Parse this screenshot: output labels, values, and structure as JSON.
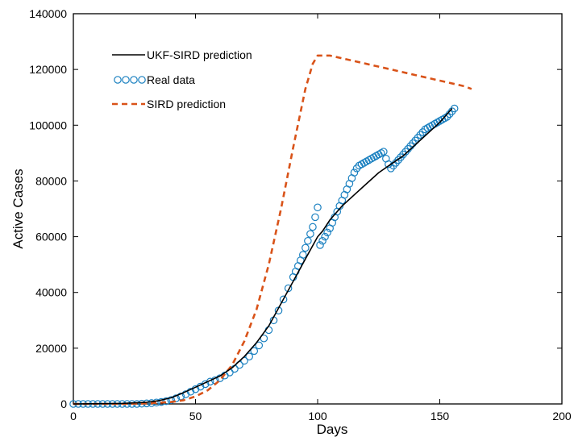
{
  "chart_data": {
    "type": "line",
    "title": "",
    "xlabel": "Days",
    "ylabel": "Active Cases",
    "xlim": [
      0,
      200
    ],
    "ylim": [
      0,
      140000
    ],
    "x_ticks": [
      0,
      50,
      100,
      150,
      200
    ],
    "y_ticks": [
      0,
      20000,
      40000,
      60000,
      80000,
      100000,
      120000,
      140000
    ],
    "grid": false,
    "legend_position": "top-left",
    "series": [
      {
        "name": "UKF-SIRD prediction",
        "style": "solid",
        "color": "#000000",
        "x": [
          0,
          10,
          20,
          30,
          35,
          40,
          45,
          50,
          55,
          60,
          65,
          70,
          75,
          80,
          85,
          90,
          95,
          100,
          102,
          105,
          110,
          115,
          120,
          125,
          130,
          135,
          140,
          145,
          150,
          155
        ],
        "y": [
          0,
          100,
          200,
          600,
          1200,
          2200,
          4000,
          6000,
          8000,
          10000,
          13000,
          17000,
          22000,
          28000,
          36000,
          44000,
          52000,
          60000,
          62000,
          66000,
          71000,
          75000,
          79000,
          83000,
          86000,
          89000,
          93000,
          97000,
          101000,
          106000
        ]
      },
      {
        "name": "Real data",
        "style": "circles",
        "color": "#1a80c0",
        "x": [
          0,
          2,
          4,
          6,
          8,
          10,
          12,
          14,
          16,
          18,
          20,
          22,
          24,
          26,
          28,
          30,
          32,
          34,
          36,
          38,
          40,
          42,
          44,
          46,
          48,
          50,
          52,
          54,
          56,
          58,
          60,
          62,
          64,
          66,
          68,
          70,
          72,
          74,
          76,
          78,
          80,
          82,
          84,
          86,
          88,
          90,
          91,
          92,
          93,
          94,
          95,
          96,
          97,
          98,
          99,
          100,
          101,
          102,
          103,
          104,
          105,
          106,
          107,
          108,
          109,
          110,
          111,
          112,
          113,
          114,
          115,
          116,
          117,
          118,
          119,
          120,
          121,
          122,
          123,
          124,
          125,
          126,
          127,
          128,
          129,
          130,
          131,
          132,
          133,
          134,
          135,
          136,
          137,
          138,
          139,
          140,
          141,
          142,
          143,
          144,
          145,
          146,
          147,
          148,
          149,
          150,
          151,
          152,
          153,
          154,
          155,
          156
        ],
        "y": [
          0,
          0,
          0,
          0,
          0,
          0,
          0,
          0,
          0,
          0,
          0,
          0,
          0,
          0,
          100,
          200,
          300,
          500,
          700,
          1000,
          1400,
          2000,
          2700,
          3500,
          4400,
          5300,
          6200,
          7100,
          8000,
          8500,
          9200,
          10200,
          11300,
          12600,
          14000,
          15500,
          17000,
          19000,
          21000,
          23500,
          26500,
          30000,
          33500,
          37500,
          41500,
          45500,
          47500,
          49500,
          51500,
          53500,
          56000,
          58500,
          61000,
          63500,
          67000,
          70500,
          57000,
          58500,
          60000,
          61500,
          63000,
          65000,
          67000,
          69000,
          71000,
          73000,
          75000,
          77000,
          79000,
          81000,
          83000,
          84500,
          85500,
          86000,
          86500,
          87000,
          87500,
          88000,
          88500,
          89000,
          89500,
          90000,
          90500,
          88000,
          86000,
          84500,
          85500,
          86500,
          87500,
          88500,
          89500,
          90500,
          91500,
          92500,
          93500,
          94500,
          95500,
          96500,
          97500,
          98500,
          99000,
          99500,
          100000,
          100500,
          101000,
          101500,
          102000,
          102500,
          103000,
          104000,
          105000,
          106000
        ]
      },
      {
        "name": "SIRD prediction",
        "style": "dashed",
        "color": "#d95319",
        "x": [
          0,
          10,
          20,
          30,
          40,
          45,
          50,
          55,
          60,
          65,
          70,
          75,
          80,
          85,
          90,
          95,
          98,
          100,
          105,
          110,
          120,
          130,
          140,
          150,
          160,
          163
        ],
        "y": [
          0,
          0,
          0,
          200,
          700,
          1300,
          2700,
          4900,
          8500,
          14000,
          22500,
          34000,
          50000,
          70000,
          92000,
          113000,
          122000,
          125000,
          125000,
          124000,
          122000,
          120000,
          118000,
          116000,
          114000,
          113000
        ]
      }
    ]
  }
}
